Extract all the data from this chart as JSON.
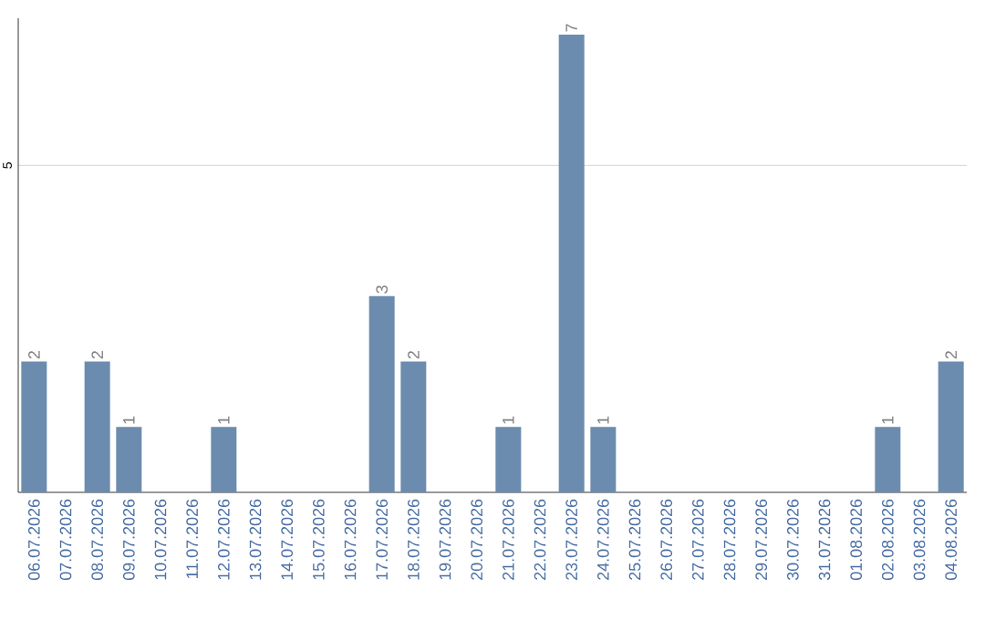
{
  "chart_data": {
    "type": "bar",
    "categories": [
      "06.07.2026",
      "07.07.2026",
      "08.07.2026",
      "09.07.2026",
      "10.07.2026",
      "11.07.2026",
      "12.07.2026",
      "13.07.2026",
      "14.07.2026",
      "15.07.2026",
      "16.07.2026",
      "17.07.2026",
      "18.07.2026",
      "19.07.2026",
      "20.07.2026",
      "21.07.2026",
      "22.07.2026",
      "23.07.2026",
      "24.07.2026",
      "25.07.2026",
      "26.07.2026",
      "27.07.2026",
      "28.07.2026",
      "29.07.2026",
      "30.07.2026",
      "31.07.2026",
      "01.08.2026",
      "02.08.2026",
      "03.08.2026",
      "04.08.2026"
    ],
    "values": [
      2,
      0,
      2,
      1,
      0,
      0,
      1,
      0,
      0,
      0,
      0,
      3,
      2,
      0,
      0,
      1,
      0,
      7,
      1,
      0,
      0,
      0,
      0,
      0,
      0,
      0,
      0,
      1,
      0,
      2
    ],
    "value_labels": [
      "2",
      null,
      "2",
      "1",
      null,
      null,
      "1",
      null,
      null,
      null,
      null,
      "3",
      "2",
      null,
      null,
      "1",
      null,
      "7",
      "1",
      null,
      null,
      null,
      null,
      null,
      null,
      null,
      null,
      "1",
      null,
      "2"
    ],
    "color": "#6b8cae",
    "ylim": [
      0,
      7.25
    ],
    "yticks": [
      5
    ],
    "grid": "y"
  }
}
